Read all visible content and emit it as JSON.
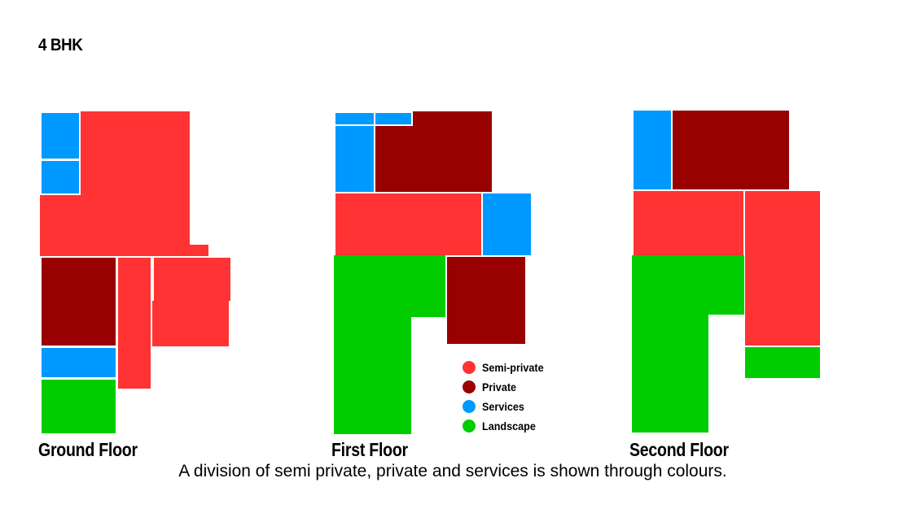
{
  "title": "4 BHK",
  "caption": "A division of semi private, private and services is shown through colours.",
  "colors": {
    "semi_private": "#ff3333",
    "private": "#990000",
    "services": "#0099ff",
    "landscape": "#00cc00"
  },
  "floors": {
    "ground": {
      "label": "Ground Floor"
    },
    "first": {
      "label": "First Floor"
    },
    "second": {
      "label": "Second Floor"
    }
  },
  "legend": [
    {
      "label": "Semi-private",
      "color": "#ff3333"
    },
    {
      "label": "Private",
      "color": "#990000"
    },
    {
      "label": "Services",
      "color": "#0099ff"
    },
    {
      "label": "Landscape",
      "color": "#00cc00"
    }
  ]
}
